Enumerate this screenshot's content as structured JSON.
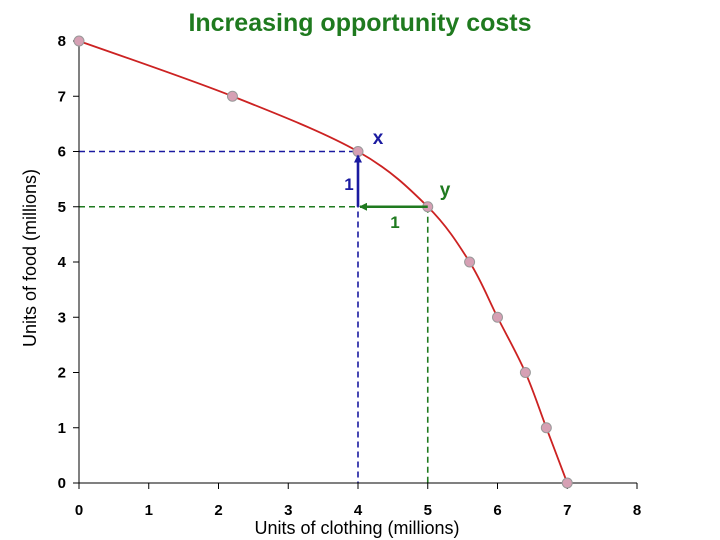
{
  "chart_data": {
    "type": "line",
    "title": "Increasing opportunity costs",
    "xlabel": "Units of clothing (millions)",
    "ylabel": "Units of food (millions)",
    "xlim": [
      0,
      8
    ],
    "ylim": [
      0,
      8
    ],
    "x_ticks": [
      "0",
      "1",
      "2",
      "3",
      "4",
      "5",
      "6",
      "7",
      "8"
    ],
    "y_ticks": [
      "0",
      "1",
      "2",
      "3",
      "4",
      "5",
      "6",
      "7",
      "8"
    ],
    "grid": false,
    "series": [
      {
        "x": [
          0,
          2.2,
          4,
          5,
          5.6,
          6,
          6.4,
          6.7,
          7
        ],
        "y": [
          8,
          7,
          6,
          5,
          4,
          3,
          2,
          1,
          0
        ]
      }
    ],
    "annotations": {
      "point_x": {
        "label": "x",
        "x": 4,
        "y": 6
      },
      "point_y": {
        "label": "y",
        "x": 5,
        "y": 5
      },
      "food_change_label": "1",
      "clothing_change_label": "1"
    },
    "colors": {
      "curve": "#cc2222",
      "marker_fill": "#d6a0b4",
      "marker_stroke": "#999999",
      "guide_blue": "#1a1aa0",
      "guide_green": "#1f7a1f",
      "title": "#1f7a1f"
    }
  }
}
